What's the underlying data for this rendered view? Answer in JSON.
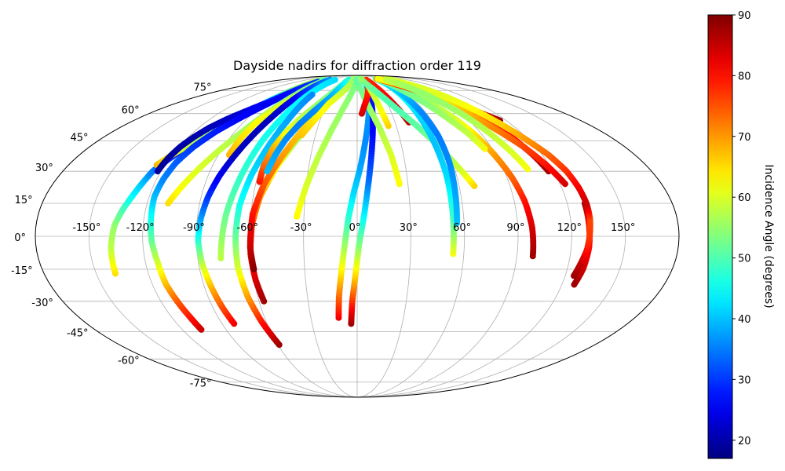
{
  "chart_data": {
    "type": "scatter",
    "projection": "mollweide",
    "title": "Dayside nadirs for diffraction order 119",
    "grid": true,
    "colormap": "jet",
    "colorbar": {
      "label": "Incidence Angle (degrees)",
      "range": [
        17,
        90
      ],
      "ticks": [
        20,
        30,
        40,
        50,
        60,
        70,
        80,
        90
      ],
      "placement": "right"
    },
    "lon_ticks": [
      "-150°",
      "-120°",
      "-90°",
      "-60°",
      "-30°",
      "0°",
      "30°",
      "60°",
      "90°",
      "120°",
      "150°"
    ],
    "lat_ticks": [
      "-75°",
      "-60°",
      "-45°",
      "-30°",
      "-15°",
      "0°",
      "15°",
      "30°",
      "45°",
      "60°",
      "75°"
    ],
    "tracks": [
      {
        "lon": [
          -139,
          -138,
          -136,
          -133,
          -130,
          -127,
          -125,
          -120,
          -112,
          -105,
          -98,
          -92,
          -88,
          -85,
          -84
        ],
        "lat": [
          -17,
          -5,
          5,
          12,
          18,
          25,
          30,
          36,
          44,
          52,
          59,
          66,
          72,
          78,
          83
        ],
        "inc": [
          65,
          58,
          55,
          50,
          45,
          40,
          35,
          30,
          25,
          22,
          30,
          40,
          50,
          55,
          58
        ]
      },
      {
        "lon": [
          -125,
          -120,
          -113,
          -105,
          -98,
          -92,
          -88,
          -85,
          -83,
          -82
        ],
        "lat": [
          33,
          38,
          44,
          50,
          56,
          62,
          68,
          74,
          80,
          84
        ],
        "inc": [
          68,
          62,
          58,
          55,
          53,
          52,
          54,
          56,
          58,
          60
        ]
      },
      {
        "lon": [
          -122,
          -121,
          -119,
          -116,
          -112,
          -106,
          -98,
          -90,
          -85,
          -81,
          -79,
          -78
        ],
        "lat": [
          30,
          36,
          42,
          47,
          52,
          57,
          62,
          67,
          72,
          77,
          81,
          84
        ],
        "inc": [
          19,
          19,
          20,
          20,
          21,
          22,
          24,
          27,
          31,
          37,
          43,
          50
        ]
      },
      {
        "lon": [
          -107,
          -108,
          -110,
          -112,
          -113,
          -115,
          -116,
          -117,
          -116,
          -114,
          -110,
          -104,
          -96,
          -88,
          -82,
          -78
        ],
        "lat": [
          -44,
          -38,
          -30,
          -22,
          -12,
          -2,
          8,
          18,
          26,
          34,
          42,
          50,
          58,
          66,
          74,
          82
        ],
        "inc": [
          85,
          80,
          75,
          68,
          60,
          52,
          46,
          40,
          36,
          33,
          30,
          28,
          26,
          25,
          27,
          30
        ]
      },
      {
        "lon": [
          -108,
          -103,
          -97,
          -90,
          -83,
          -77,
          -72,
          -70
        ],
        "lat": [
          15,
          23,
          32,
          42,
          52,
          62,
          72,
          82
        ],
        "inc": [
          65,
          62,
          60,
          58,
          56,
          55,
          54,
          53
        ]
      },
      {
        "lon": [
          -83,
          -82,
          -80,
          -76,
          -71,
          -66,
          -62,
          -60
        ],
        "lat": [
          38,
          46,
          54,
          61,
          68,
          74,
          80,
          84
        ],
        "inc": [
          68,
          65,
          63,
          61,
          60,
          58,
          56,
          55
        ]
      },
      {
        "lon": [
          -82,
          -84,
          -86,
          -88,
          -89,
          -88,
          -86,
          -83,
          -79,
          -75,
          -71,
          -68,
          -66,
          -65
        ],
        "lat": [
          -41,
          -33,
          -23,
          -12,
          -2,
          8,
          18,
          28,
          38,
          48,
          58,
          68,
          76,
          84
        ],
        "inc": [
          82,
          76,
          68,
          58,
          48,
          38,
          30,
          25,
          22,
          21,
          22,
          25,
          30,
          36
        ]
      },
      {
        "lon": [
          -77,
          -74,
          -70,
          -66,
          -62,
          -58,
          -55,
          -53
        ],
        "lat": [
          -10,
          10,
          28,
          45,
          58,
          70,
          78,
          84
        ],
        "inc": [
          58,
          52,
          48,
          46,
          45,
          44,
          43,
          42
        ]
      },
      {
        "lon": [
          -59,
          -63,
          -66,
          -68,
          -68,
          -67,
          -64,
          -60,
          -56,
          -53
        ],
        "lat": [
          -52,
          -40,
          -28,
          -14,
          0,
          14,
          28,
          42,
          56,
          72
        ],
        "inc": [
          88,
          80,
          70,
          60,
          52,
          46,
          42,
          40,
          38,
          36
        ]
      },
      {
        "lon": [
          -57,
          -59,
          -60,
          -59,
          -56,
          -50,
          -42,
          -34,
          -26,
          -22,
          -20
        ],
        "lat": [
          -30,
          -20,
          -8,
          5,
          18,
          32,
          46,
          58,
          70,
          80,
          84
        ],
        "inc": [
          88,
          84,
          80,
          75,
          70,
          62,
          56,
          52,
          50,
          50,
          52
        ]
      },
      {
        "lon": [
          -59,
          -60,
          -59,
          -55,
          -48,
          -40,
          -32,
          -26,
          -22
        ],
        "lat": [
          -15,
          -5,
          10,
          24,
          38,
          52,
          64,
          76,
          84
        ],
        "inc": [
          90,
          85,
          80,
          75,
          70,
          66,
          62,
          58,
          55
        ]
      },
      {
        "lon": [
          -58,
          -58,
          -56,
          -52,
          -46,
          -38,
          -30,
          -24,
          -20
        ],
        "lat": [
          25,
          33,
          42,
          50,
          58,
          66,
          74,
          80,
          84
        ],
        "inc": [
          80,
          74,
          68,
          62,
          58,
          55,
          52,
          50,
          48
        ]
      },
      {
        "lon": [
          -55,
          -53,
          -50,
          -45,
          -38,
          -30,
          -24,
          -20
        ],
        "lat": [
          30,
          38,
          46,
          54,
          62,
          70,
          78,
          84
        ],
        "inc": [
          40,
          38,
          36,
          35,
          36,
          38,
          42,
          46
        ]
      },
      {
        "lon": [
          -40,
          -36,
          -32,
          -28,
          -22,
          -16,
          -12,
          -10,
          -9
        ],
        "lat": [
          48,
          54,
          60,
          66,
          71,
          76,
          80,
          83,
          85
        ],
        "inc": [
          67,
          65,
          63,
          62,
          60,
          58,
          57,
          56,
          56
        ]
      },
      {
        "lon": [
          -34,
          -30,
          -25,
          -19,
          -13,
          -7,
          -2,
          2
        ],
        "lat": [
          9,
          23,
          37,
          51,
          63,
          73,
          80,
          85
        ],
        "inc": [
          63,
          60,
          58,
          56,
          55,
          54,
          53,
          52
        ]
      },
      {
        "lon": [
          -12,
          -11,
          -9,
          -7,
          -5,
          -2,
          2,
          6,
          10,
          13,
          15
        ],
        "lat": [
          -38,
          -28,
          -16,
          -4,
          8,
          20,
          32,
          46,
          60,
          72,
          82
        ],
        "inc": [
          82,
          74,
          64,
          56,
          48,
          42,
          38,
          36,
          37,
          42,
          48
        ]
      },
      {
        "lon": [
          -4,
          -3,
          -1,
          1,
          4,
          7,
          10,
          13,
          15,
          16
        ],
        "lat": [
          -41,
          -30,
          -18,
          -4,
          10,
          26,
          42,
          58,
          72,
          82
        ],
        "inc": [
          88,
          78,
          66,
          54,
          44,
          34,
          28,
          25,
          28,
          35
        ]
      },
      {
        "lon": [
          25,
          22,
          17,
          11,
          6,
          2,
          -2
        ],
        "lat": [
          24,
          38,
          52,
          64,
          74,
          80,
          84
        ],
        "inc": [
          63,
          60,
          57,
          55,
          53,
          52,
          51
        ]
      },
      {
        "lon": [
          4,
          7,
          11,
          15,
          20
        ],
        "lat": [
          60,
          65,
          70,
          76,
          83
        ],
        "inc": [
          84,
          82,
          80,
          78,
          76
        ]
      },
      {
        "lon": [
          24,
          22,
          20,
          18,
          16
        ],
        "lat": [
          53,
          60,
          68,
          76,
          84
        ],
        "inc": [
          66,
          63,
          60,
          58,
          56
        ]
      },
      {
        "lon": [
          41,
          38,
          34,
          30,
          26,
          22
        ],
        "lat": [
          55,
          62,
          69,
          75,
          80,
          84
        ],
        "inc": [
          86,
          84,
          82,
          80,
          79,
          78
        ]
      },
      {
        "lon": [
          69,
          64,
          58,
          52,
          45,
          37,
          29,
          22,
          16,
          12,
          10
        ],
        "lat": [
          23,
          30,
          38,
          46,
          54,
          62,
          70,
          76,
          80,
          83,
          85
        ],
        "inc": [
          66,
          60,
          56,
          53,
          51,
          50,
          50,
          51,
          52,
          53,
          55
        ]
      },
      {
        "lon": [
          54,
          54,
          54,
          53,
          52,
          51,
          50
        ],
        "lat": [
          -8,
          10,
          28,
          45,
          60,
          74,
          84
        ],
        "inc": [
          62,
          48,
          42,
          40,
          42,
          46,
          50
        ]
      },
      {
        "lon": [
          56,
          57,
          58,
          58,
          56,
          53,
          50
        ],
        "lat": [
          6,
          20,
          34,
          48,
          62,
          74,
          84
        ],
        "inc": [
          40,
          38,
          36,
          35,
          36,
          40,
          44
        ]
      },
      {
        "lon": [
          99,
          98,
          96,
          93,
          89,
          85,
          80,
          74,
          67,
          60,
          54,
          50
        ],
        "lat": [
          -9,
          4,
          16,
          27,
          38,
          48,
          57,
          65,
          72,
          78,
          82,
          85
        ],
        "inc": [
          88,
          84,
          80,
          74,
          70,
          65,
          60,
          57,
          55,
          53,
          52,
          51
        ]
      },
      {
        "lon": [
          85,
          80,
          74,
          68,
          62,
          57,
          54
        ],
        "lat": [
          41,
          50,
          58,
          66,
          73,
          79,
          84
        ],
        "inc": [
          62,
          58,
          56,
          54,
          53,
          52,
          51
        ]
      },
      {
        "lon": [
          115,
          108,
          100,
          91,
          82,
          73,
          65,
          58,
          54
        ],
        "lat": [
          56,
          60,
          65,
          69,
          73,
          77,
          80,
          83,
          85
        ],
        "inc": [
          88,
          85,
          82,
          80,
          78,
          77,
          76,
          75,
          74
        ]
      },
      {
        "lon": [
          117,
          114,
          110,
          104,
          97,
          89,
          81,
          73,
          66,
          60,
          56
        ],
        "lat": [
          30,
          38,
          46,
          54,
          62,
          69,
          75,
          79,
          82,
          84,
          85
        ],
        "inc": [
          88,
          85,
          82,
          78,
          74,
          70,
          67,
          65,
          64,
          63,
          62
        ]
      },
      {
        "lon": [
          130,
          130,
          130,
          129,
          127,
          123,
          118,
          112,
          104,
          96,
          89,
          83,
          78
        ],
        "lat": [
          15,
          5,
          -5,
          -15,
          -23,
          24,
          33,
          42,
          51,
          60,
          69,
          77,
          84
        ],
        "inc": [
          88,
          80,
          80,
          84,
          88,
          84,
          80,
          76,
          72,
          68,
          64,
          62,
          60
        ]
      },
      {
        "lon": [
          125,
          127,
          129,
          130,
          131,
          131,
          130,
          128,
          124,
          118,
          112,
          106,
          100,
          94,
          88,
          82,
          78
        ],
        "lat": [
          -18,
          -12,
          -6,
          0,
          8,
          15,
          22,
          30,
          38,
          46,
          54,
          62,
          70,
          76,
          80,
          83,
          85
        ],
        "inc": [
          88,
          85,
          80,
          77,
          76,
          85,
          82,
          78,
          74,
          70,
          66,
          63,
          61,
          60,
          60,
          60,
          60
        ]
      },
      {
        "lon": [
          105,
          101,
          96,
          90,
          84,
          78,
          73,
          70
        ],
        "lat": [
          31,
          40,
          50,
          60,
          68,
          75,
          80,
          84
        ],
        "inc": [
          62,
          60,
          58,
          56,
          55,
          55,
          56,
          58
        ]
      }
    ]
  }
}
